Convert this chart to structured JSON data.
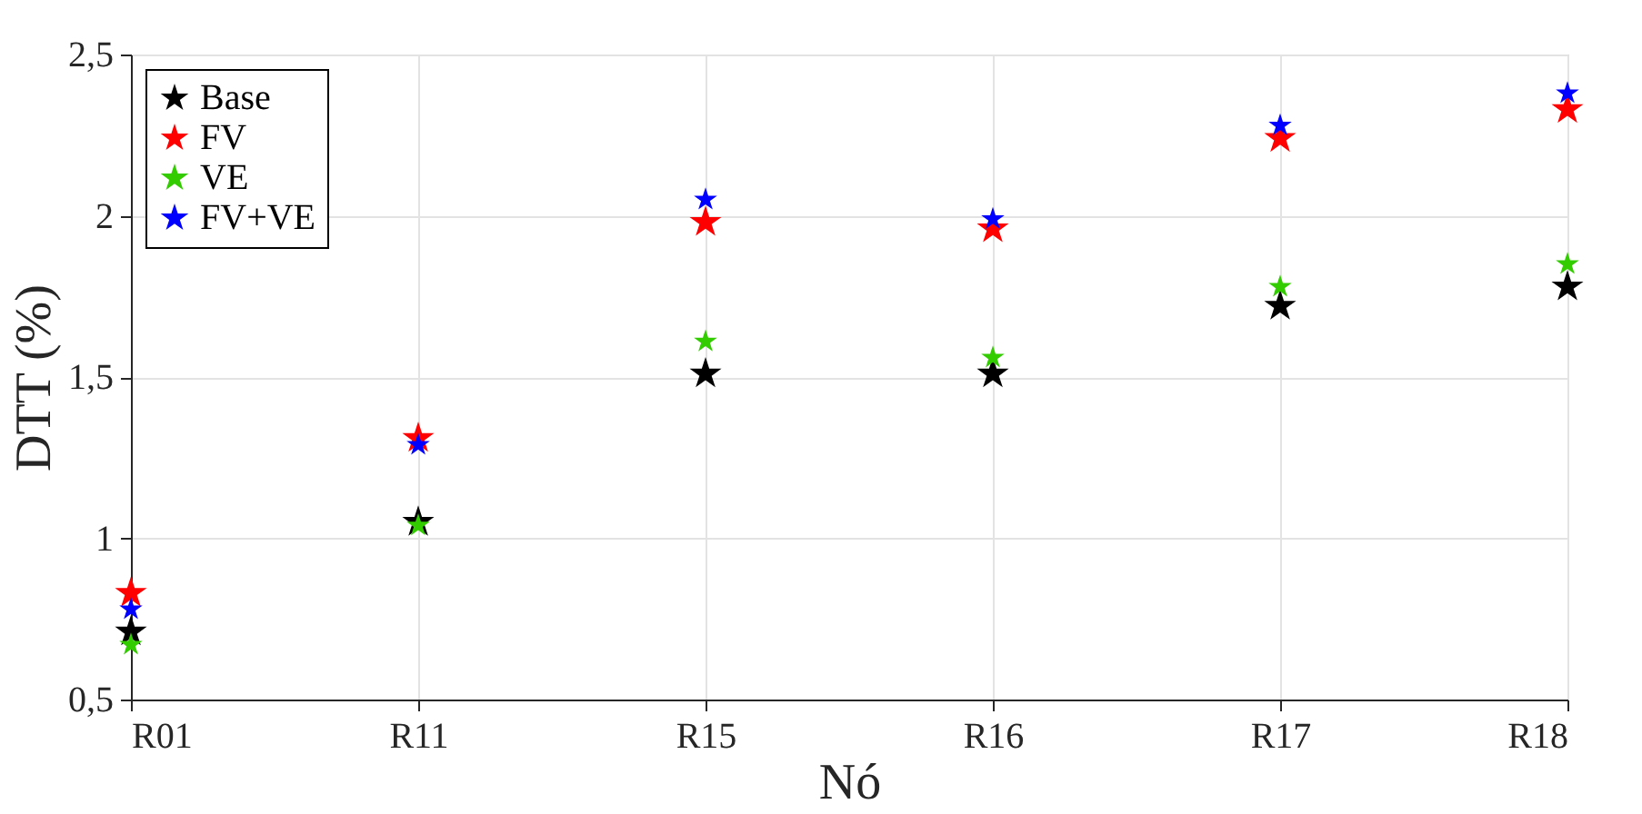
{
  "chart_data": {
    "type": "scatter",
    "xlabel": "Nó",
    "ylabel": "DTT (%)",
    "categories": [
      "R01",
      "R11",
      "R15",
      "R16",
      "R17",
      "R18"
    ],
    "series": [
      {
        "name": "Base",
        "color": "#000000",
        "values": [
          0.71,
          1.05,
          1.51,
          1.51,
          1.72,
          1.78
        ]
      },
      {
        "name": "FV",
        "color": "#ff0000",
        "values": [
          0.83,
          1.31,
          1.98,
          1.96,
          2.24,
          2.33
        ]
      },
      {
        "name": "VE",
        "color": "#33cc00",
        "values": [
          0.67,
          1.04,
          1.61,
          1.56,
          1.78,
          1.85
        ]
      },
      {
        "name": "FV+VE",
        "color": "#0000ff",
        "values": [
          0.78,
          1.29,
          2.05,
          1.99,
          2.28,
          2.38
        ]
      }
    ],
    "ylim": [
      0.5,
      2.5
    ],
    "yticks": [
      {
        "value": 0.5,
        "label": "0,5"
      },
      1,
      {
        "value": 1.5,
        "label": "1,5"
      },
      2,
      {
        "value": 2.5,
        "label": "2,5"
      }
    ],
    "grid": true,
    "legend": "top left",
    "marker": "star"
  }
}
